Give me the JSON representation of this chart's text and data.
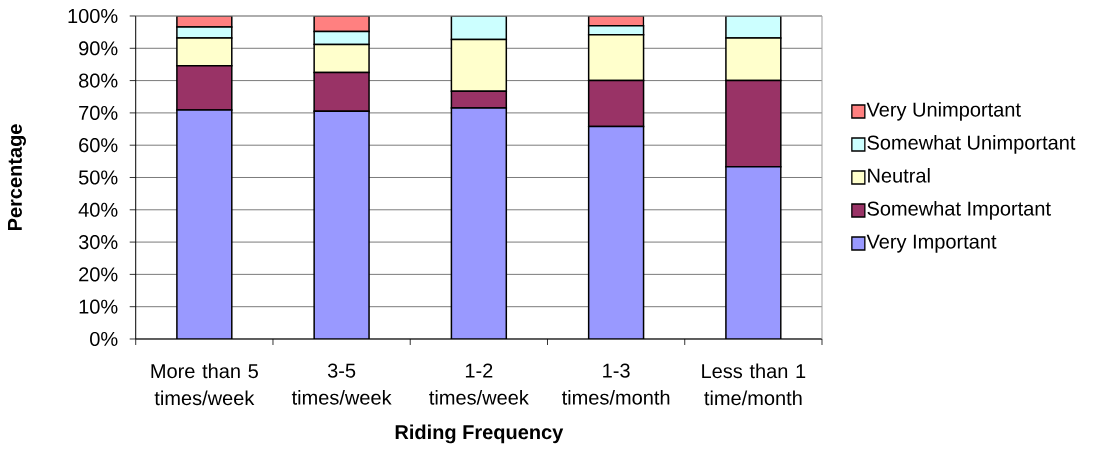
{
  "chart_data": {
    "type": "bar",
    "stacked": true,
    "xlabel": "Riding Frequency",
    "ylabel": "Percentage",
    "categories": [
      "More than 5 times/week",
      "3-5 times/week",
      "1-2 times/week",
      "1-3 times/month",
      "Less than 1 time/month"
    ],
    "series": [
      {
        "name": "Very Important",
        "color": "#9999ff",
        "values": [
          70.9,
          70.5,
          71.5,
          65.8,
          53.3
        ]
      },
      {
        "name": "Somewhat Important",
        "color": "#993366",
        "values": [
          13.7,
          12.0,
          5.2,
          14.2,
          26.7
        ]
      },
      {
        "name": "Neutral",
        "color": "#ffffcc",
        "values": [
          8.6,
          8.7,
          16.0,
          14.2,
          13.2
        ]
      },
      {
        "name": "Somewhat Unimportant",
        "color": "#ccffff",
        "values": [
          3.4,
          4.0,
          7.3,
          2.8,
          6.8
        ]
      },
      {
        "name": "Very Unimportant",
        "color": "#ff8080",
        "values": [
          3.4,
          4.8,
          0,
          3.0,
          0
        ]
      }
    ],
    "ylim": [
      0,
      100
    ],
    "yticks": [
      {
        "value": 0,
        "label": "0%"
      },
      {
        "value": 10,
        "label": "10%"
      },
      {
        "value": 20,
        "label": "20%"
      },
      {
        "value": 30,
        "label": "30%"
      },
      {
        "value": 40,
        "label": "40%"
      },
      {
        "value": 50,
        "label": "50%"
      },
      {
        "value": 60,
        "label": "60%"
      },
      {
        "value": 70,
        "label": "70%"
      },
      {
        "value": 80,
        "label": "80%"
      },
      {
        "value": 90,
        "label": "90%"
      },
      {
        "value": 100,
        "label": "100%"
      }
    ],
    "grid": "y",
    "legend": "right"
  }
}
